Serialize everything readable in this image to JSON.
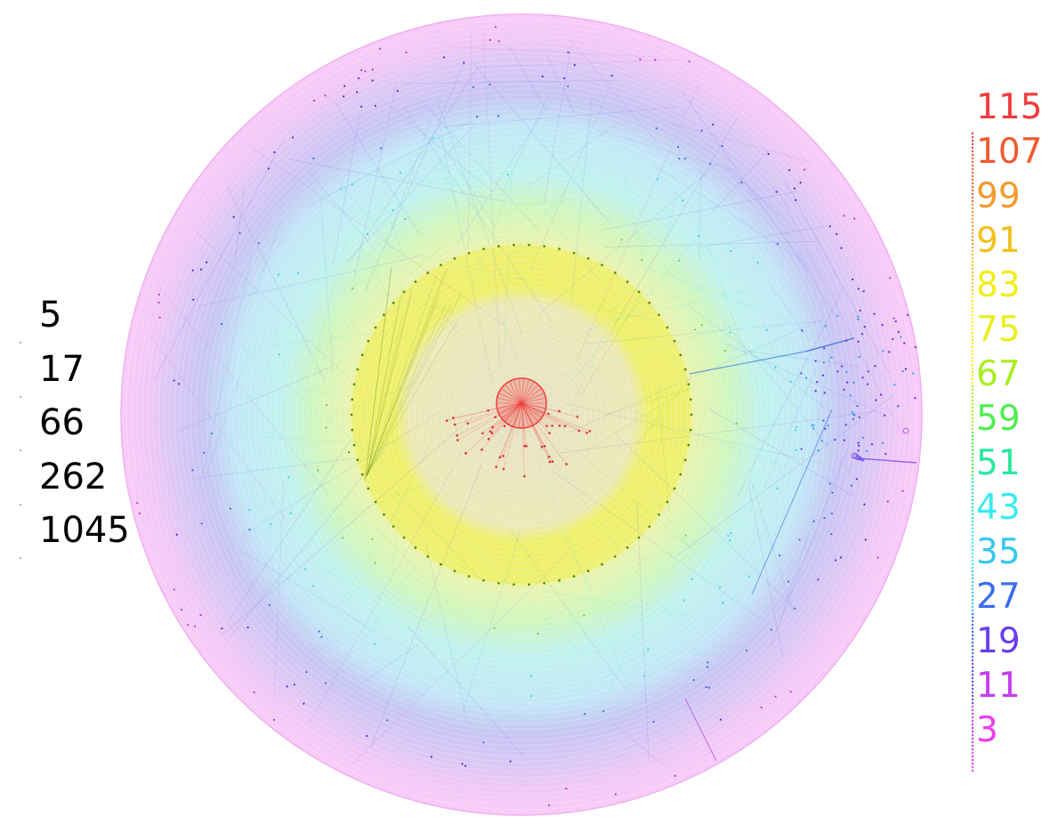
{
  "size_legend": {
    "labels": [
      "5",
      "17",
      "66",
      "262",
      "1045"
    ]
  },
  "shell_legend": {
    "labels": [
      "115",
      "107",
      "99",
      "91",
      "83",
      "75",
      "67",
      "59",
      "51",
      "43",
      "35",
      "27",
      "19",
      "11",
      "3"
    ],
    "colors": [
      "#f03c3c",
      "#f05a30",
      "#f39a2d",
      "#f2c21c",
      "#f2ee1a",
      "#e9ee1d",
      "#a8ee1f",
      "#4fee4f",
      "#2ae8a0",
      "#38ecf0",
      "#35c8f0",
      "#3a6cf0",
      "#6a3cf0",
      "#c43cf0",
      "#f03cf0"
    ]
  },
  "palette": {
    "core": "#f03c3c",
    "inner_band": "#e8ee3c",
    "ring_nodes": "#6a9a10",
    "mid": "#9ef0f0",
    "outer_blue": "#a7a7ee",
    "outer_violet": "#dcbdf5",
    "outer_pink": "#f6c6f6"
  }
}
